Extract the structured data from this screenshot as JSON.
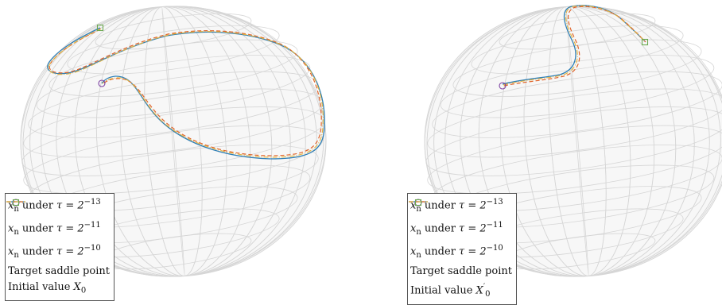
{
  "panels": [
    {
      "legend": [
        {
          "pre": "",
          "var": "x",
          "sub": "n",
          "mid": " under ",
          "sym": "τ = 2",
          "sup": "−13",
          "post": "",
          "style": "solid",
          "color": "#2f7fb5"
        },
        {
          "pre": "",
          "var": "x",
          "sub": "n",
          "mid": " under ",
          "sym": "τ = 2",
          "sup": "−11",
          "post": "",
          "style": "dashed",
          "color": "#e0632a"
        },
        {
          "pre": "",
          "var": "x",
          "sub": "n",
          "mid": " under ",
          "sym": "τ = 2",
          "sup": "−10",
          "post": "",
          "style": "dashdot",
          "color": "#e3b23c"
        },
        {
          "text": "Target saddle point",
          "style": "circle",
          "color": "#7b3fa0"
        },
        {
          "text": "Initial value ",
          "var": "X",
          "sub": "0",
          "style": "square",
          "color": "#6aa84f"
        }
      ]
    },
    {
      "legend": [
        {
          "pre": "",
          "var": "x",
          "sub": "n",
          "mid": " under ",
          "sym": "τ = 2",
          "sup": "−13",
          "post": "",
          "style": "solid",
          "color": "#2f7fb5"
        },
        {
          "pre": "",
          "var": "x",
          "sub": "n",
          "mid": " under ",
          "sym": "τ = 2",
          "sup": "−11",
          "post": "",
          "style": "dashed",
          "color": "#e0632a"
        },
        {
          "pre": "",
          "var": "x",
          "sub": "n",
          "mid": " under ",
          "sym": "τ = 2",
          "sup": "−10",
          "post": "",
          "style": "dashdot",
          "color": "#e3b23c"
        },
        {
          "text": "Target saddle point",
          "style": "circle",
          "color": "#7b3fa0"
        },
        {
          "text": "Initial value ",
          "var": "X",
          "sub": "0",
          "prime": "′",
          "style": "square",
          "color": "#6aa84f"
        }
      ]
    }
  ],
  "colors": {
    "sphere_grid": "#d6d6d6",
    "sphere_fill": "#f7f7f7"
  }
}
